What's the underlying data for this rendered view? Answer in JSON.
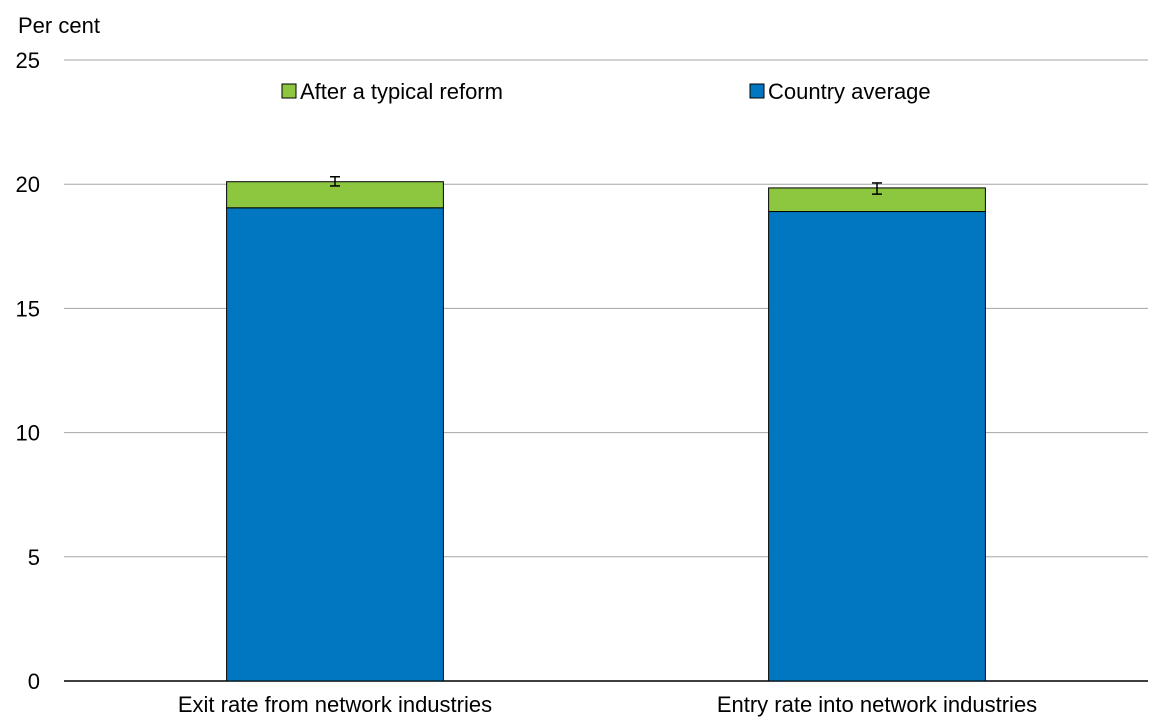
{
  "chart_data": {
    "type": "bar",
    "stacked": true,
    "ylabel": "Per cent",
    "ylim": [
      0,
      25
    ],
    "yticks": [
      0,
      5,
      10,
      15,
      20,
      25
    ],
    "grid": true,
    "legend_position": "top",
    "categories": [
      "Exit rate from network industries",
      "Entry rate into network industries"
    ],
    "series": [
      {
        "name": "Country average",
        "color": "#0077c0",
        "values": [
          19.05,
          18.9
        ]
      },
      {
        "name": "After a typical reform",
        "color": "#8dc63f",
        "values": [
          1.05,
          0.95
        ]
      }
    ],
    "error_bars": [
      {
        "center": 20.1,
        "low": 19.93,
        "high": 20.3
      },
      {
        "center": 19.85,
        "low": 19.6,
        "high": 20.05
      }
    ],
    "legend_order": [
      "After a typical reform",
      "Country average"
    ]
  }
}
